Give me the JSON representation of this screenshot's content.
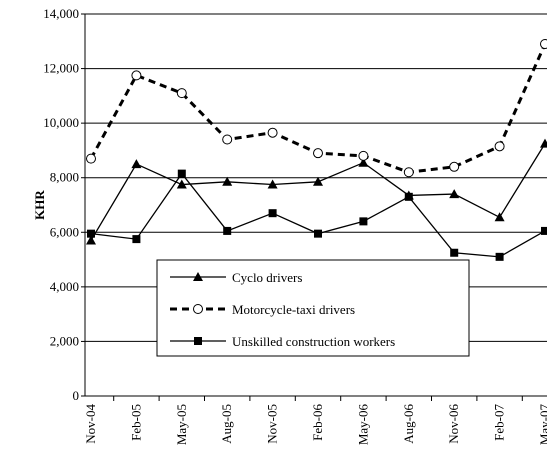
{
  "chart_data": {
    "type": "line",
    "y_label": "KHR",
    "categories": [
      "Nov-04",
      "Feb-05",
      "May-05",
      "Aug-05",
      "Nov-05",
      "Feb-06",
      "May-06",
      "Aug-06",
      "Nov-06",
      "Feb-07",
      "May-07"
    ],
    "series": [
      {
        "name": "Cyclo drivers",
        "color": "#000000",
        "marker": "triangle",
        "line_style": "solid",
        "values": [
          5700,
          8500,
          7750,
          7850,
          7750,
          7850,
          8550,
          7350,
          7400,
          6550,
          9250
        ]
      },
      {
        "name": "Motorcycle-taxi drivers",
        "color": "#000000",
        "marker": "open-circle",
        "line_style": "dashed",
        "values": [
          8700,
          11750,
          11100,
          9400,
          9650,
          8900,
          8800,
          8200,
          8400,
          9150,
          12900
        ]
      },
      {
        "name": "Unskilled construction workers",
        "color": "#000000",
        "marker": "square",
        "line_style": "solid",
        "values": [
          5950,
          5750,
          8150,
          6050,
          6700,
          5950,
          6400,
          7300,
          5250,
          5100,
          6050
        ]
      }
    ],
    "ylim": [
      0,
      14000
    ],
    "yticks": [
      0,
      {
        "value": 2000,
        "label": "2,000"
      },
      {
        "value": 4000,
        "label": "4,000"
      },
      {
        "value": 6000,
        "label": "6,000"
      },
      {
        "value": 8000,
        "label": "8,000"
      },
      {
        "value": 10000,
        "label": "10,000"
      },
      {
        "value": 12000,
        "label": "12,000"
      },
      {
        "value": 14000,
        "label": "14,000"
      }
    ],
    "grid": true
  }
}
